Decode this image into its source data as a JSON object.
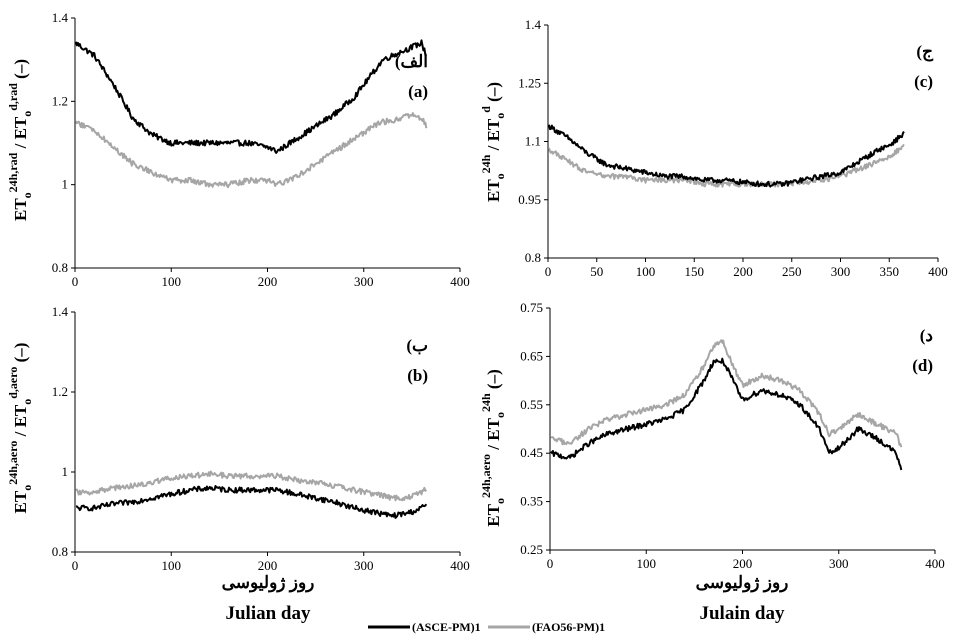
{
  "chart_data": [
    {
      "type": "line",
      "panel_label_fa": "(الف",
      "panel_label_en": "(a)",
      "ylabel": {
        "base": "ET",
        "sub1": "o",
        "sup1": "24h,rad",
        "mid": " / ET",
        "sub2": "o",
        "sup2": "d,rad",
        "unit": " (–)"
      },
      "xlabel_fa": "",
      "xlabel_en": "",
      "xlim": [
        0,
        400
      ],
      "ylim": [
        0.8,
        1.4
      ],
      "xticks": [
        "0",
        "100",
        "200",
        "300",
        "400"
      ],
      "yticks": [
        "0.8",
        "1",
        "1.2",
        "1.4"
      ],
      "series": [
        {
          "name": "(ASCE-PM)1",
          "color": "#000000",
          "x": [
            1,
            20,
            40,
            60,
            80,
            100,
            120,
            140,
            160,
            180,
            200,
            210,
            230,
            250,
            270,
            290,
            310,
            320,
            340,
            350,
            360,
            365
          ],
          "y": [
            1.34,
            1.31,
            1.24,
            1.16,
            1.12,
            1.1,
            1.1,
            1.1,
            1.1,
            1.1,
            1.09,
            1.08,
            1.11,
            1.14,
            1.17,
            1.21,
            1.27,
            1.3,
            1.32,
            1.33,
            1.34,
            1.31
          ]
        },
        {
          "name": "(FAO56-PM)1",
          "color": "#a6a6a6",
          "x": [
            1,
            20,
            40,
            60,
            80,
            100,
            120,
            140,
            160,
            180,
            200,
            210,
            230,
            250,
            270,
            290,
            310,
            320,
            340,
            350,
            360,
            365
          ],
          "y": [
            1.15,
            1.13,
            1.09,
            1.05,
            1.03,
            1.01,
            1.01,
            1.0,
            1.0,
            1.01,
            1.01,
            1.0,
            1.02,
            1.05,
            1.08,
            1.11,
            1.14,
            1.15,
            1.16,
            1.17,
            1.16,
            1.14
          ]
        }
      ]
    },
    {
      "type": "line",
      "panel_label_fa": "(ج",
      "panel_label_en": "(c)",
      "ylabel": {
        "base": "ET",
        "sub1": "o",
        "sup1": "24h",
        "mid": " / ET",
        "sub2": "o",
        "sup2": "d",
        "unit": " (–)"
      },
      "xlabel_fa": "",
      "xlabel_en": "",
      "xlim": [
        0,
        400
      ],
      "ylim": [
        0.8,
        1.4
      ],
      "xticks": [
        "0",
        "50",
        "100",
        "150",
        "200",
        "250",
        "300",
        "350",
        "400"
      ],
      "yticks": [
        "0.8",
        "0.95",
        "1.1",
        "1.25",
        "1.4"
      ],
      "series": [
        {
          "name": "(ASCE-PM)1",
          "color": "#000000",
          "x": [
            1,
            20,
            40,
            60,
            80,
            100,
            120,
            140,
            160,
            180,
            200,
            220,
            240,
            260,
            280,
            300,
            320,
            340,
            350,
            360,
            365
          ],
          "y": [
            1.14,
            1.11,
            1.07,
            1.04,
            1.03,
            1.02,
            1.01,
            1.01,
            1.0,
            1.0,
            0.995,
            0.99,
            0.99,
            1.0,
            1.01,
            1.02,
            1.05,
            1.08,
            1.09,
            1.11,
            1.12
          ]
        },
        {
          "name": "(FAO56-PM)1",
          "color": "#a6a6a6",
          "x": [
            1,
            20,
            40,
            60,
            80,
            100,
            120,
            140,
            160,
            180,
            200,
            220,
            240,
            260,
            280,
            300,
            320,
            340,
            350,
            360,
            365
          ],
          "y": [
            1.08,
            1.05,
            1.02,
            1.01,
            1.01,
            1.0,
            1.0,
            1.0,
            0.99,
            0.99,
            0.99,
            0.99,
            0.99,
            0.995,
            1.0,
            1.01,
            1.03,
            1.05,
            1.06,
            1.08,
            1.09
          ]
        }
      ]
    },
    {
      "type": "line",
      "panel_label_fa": "(ب",
      "panel_label_en": "(b)",
      "ylabel": {
        "base": "ET",
        "sub1": "o",
        "sup1": "24h,aero",
        "mid": " / ET",
        "sub2": "o",
        "sup2": "d,aero",
        "unit": " (–)"
      },
      "xlabel_fa": "روز ژولیوسی",
      "xlabel_en": "Julian day",
      "xlim": [
        0,
        400
      ],
      "ylim": [
        0.8,
        1.4
      ],
      "xticks": [
        "0",
        "100",
        "200",
        "300",
        "400"
      ],
      "yticks": [
        "0.8",
        "1",
        "1.2",
        "1.4"
      ],
      "series": [
        {
          "name": "(ASCE-PM)1",
          "color": "#000000",
          "x": [
            1,
            20,
            40,
            60,
            80,
            100,
            120,
            140,
            160,
            180,
            200,
            210,
            230,
            250,
            270,
            290,
            310,
            320,
            330,
            340,
            350,
            360,
            365
          ],
          "y": [
            0.91,
            0.91,
            0.92,
            0.925,
            0.935,
            0.945,
            0.955,
            0.96,
            0.955,
            0.955,
            0.955,
            0.955,
            0.945,
            0.935,
            0.925,
            0.91,
            0.9,
            0.895,
            0.89,
            0.895,
            0.9,
            0.91,
            0.92
          ]
        },
        {
          "name": "(FAO56-PM)1",
          "color": "#a6a6a6",
          "x": [
            1,
            20,
            40,
            60,
            80,
            100,
            120,
            140,
            160,
            180,
            200,
            210,
            230,
            250,
            270,
            290,
            310,
            320,
            330,
            340,
            350,
            360,
            365
          ],
          "y": [
            0.95,
            0.95,
            0.96,
            0.965,
            0.975,
            0.985,
            0.99,
            0.995,
            0.99,
            0.99,
            0.99,
            0.99,
            0.98,
            0.975,
            0.965,
            0.955,
            0.945,
            0.94,
            0.935,
            0.935,
            0.94,
            0.95,
            0.96
          ]
        }
      ]
    },
    {
      "type": "line",
      "panel_label_fa": "(د",
      "panel_label_en": "(d)",
      "ylabel": {
        "base": "ET",
        "sub1": "o",
        "sup1": "24h,aero",
        "mid": " / ET",
        "sub2": "o",
        "sup2": "24h",
        "unit": " (–)"
      },
      "xlabel_fa": "روز ژولیوسی",
      "xlabel_en": "Julain day",
      "xlim": [
        0,
        400
      ],
      "ylim": [
        0.25,
        0.75
      ],
      "xticks": [
        "0",
        "100",
        "200",
        "300",
        "400"
      ],
      "yticks": [
        "0.25",
        "0.35",
        "0.45",
        "0.55",
        "0.65",
        "0.75"
      ],
      "series": [
        {
          "name": "(ASCE-PM)1",
          "color": "#000000",
          "x": [
            1,
            20,
            40,
            60,
            80,
            100,
            120,
            140,
            160,
            170,
            180,
            190,
            200,
            220,
            240,
            260,
            280,
            290,
            300,
            320,
            340,
            360,
            365
          ],
          "y": [
            0.45,
            0.44,
            0.47,
            0.49,
            0.5,
            0.51,
            0.52,
            0.54,
            0.6,
            0.64,
            0.64,
            0.6,
            0.56,
            0.58,
            0.57,
            0.55,
            0.5,
            0.45,
            0.46,
            0.5,
            0.48,
            0.45,
            0.41
          ]
        },
        {
          "name": "(FAO56-PM)1",
          "color": "#a6a6a6",
          "x": [
            1,
            20,
            40,
            60,
            80,
            100,
            120,
            140,
            160,
            170,
            180,
            190,
            200,
            220,
            240,
            260,
            280,
            290,
            300,
            320,
            340,
            360,
            365
          ],
          "y": [
            0.48,
            0.47,
            0.5,
            0.52,
            0.53,
            0.54,
            0.55,
            0.57,
            0.63,
            0.67,
            0.68,
            0.63,
            0.59,
            0.61,
            0.6,
            0.58,
            0.53,
            0.49,
            0.5,
            0.53,
            0.51,
            0.49,
            0.46
          ]
        }
      ]
    }
  ],
  "legend": {
    "items": [
      {
        "label": "(ASCE-PM)1",
        "color": "#000000"
      },
      {
        "label": "(FAO56-PM)1",
        "color": "#a6a6a6"
      }
    ]
  }
}
